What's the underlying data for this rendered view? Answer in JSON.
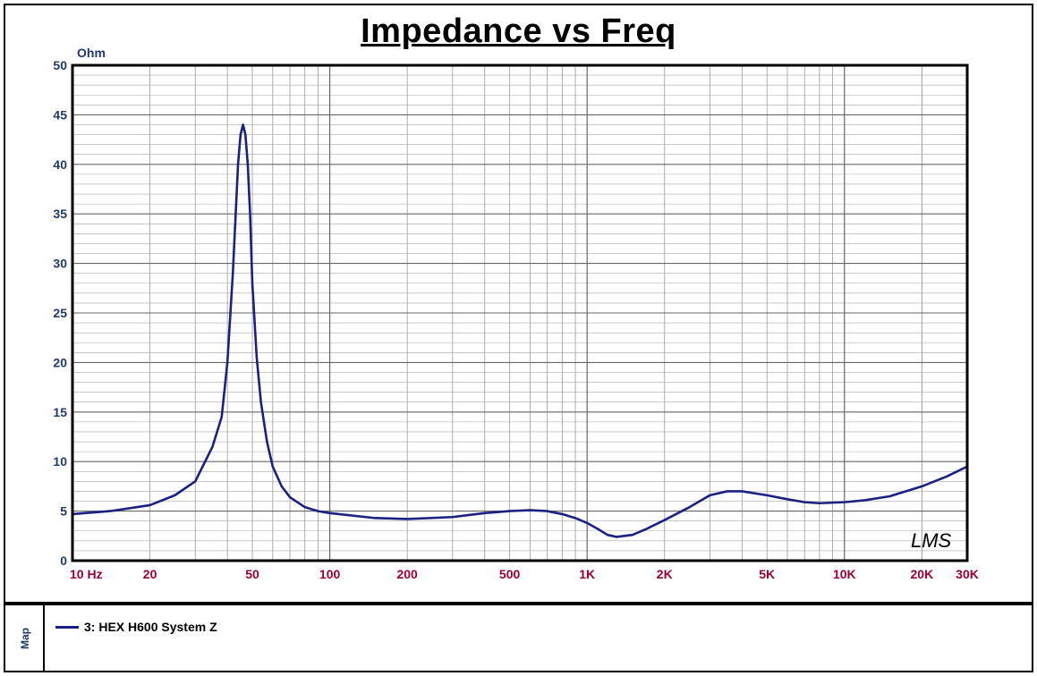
{
  "chart_data": {
    "type": "line",
    "title": "Impedance vs Freq",
    "ylabel": "Ohm",
    "xlabel": "",
    "x_scale": "log",
    "xlim": [
      10,
      30000
    ],
    "ylim": [
      0,
      50
    ],
    "y_ticks": [
      0,
      5,
      10,
      15,
      20,
      25,
      30,
      35,
      40,
      45,
      50
    ],
    "x_ticks": [
      {
        "value": 10,
        "label": "10 Hz"
      },
      {
        "value": 20,
        "label": "20"
      },
      {
        "value": 50,
        "label": "50"
      },
      {
        "value": 100,
        "label": "100"
      },
      {
        "value": 200,
        "label": "200"
      },
      {
        "value": 500,
        "label": "500"
      },
      {
        "value": 1000,
        "label": "1K"
      },
      {
        "value": 2000,
        "label": "2K"
      },
      {
        "value": 5000,
        "label": "5K"
      },
      {
        "value": 10000,
        "label": "10K"
      },
      {
        "value": 20000,
        "label": "20K"
      },
      {
        "value": 30000,
        "label": "30K"
      }
    ],
    "grid": true,
    "legend_position": "bottom",
    "series": [
      {
        "name": "3: HEX H600 System Z",
        "color": "#1a2180",
        "x": [
          10,
          14,
          20,
          25,
          30,
          35,
          38,
          40,
          42,
          44,
          45,
          46,
          47,
          48,
          49,
          50,
          52,
          54,
          57,
          60,
          65,
          70,
          80,
          90,
          100,
          150,
          200,
          300,
          400,
          500,
          600,
          700,
          800,
          900,
          1000,
          1100,
          1200,
          1300,
          1500,
          1700,
          2000,
          2500,
          3000,
          3500,
          4000,
          5000,
          6000,
          7000,
          8000,
          10000,
          12000,
          15000,
          20000,
          25000,
          30000
        ],
        "y": [
          4.7,
          5.0,
          5.6,
          6.6,
          8.0,
          11.5,
          14.5,
          20.0,
          29.0,
          40.0,
          43.0,
          44.0,
          43.0,
          40.0,
          35.0,
          28.0,
          20.5,
          16.0,
          12.0,
          9.5,
          7.5,
          6.4,
          5.4,
          5.0,
          4.8,
          4.3,
          4.2,
          4.4,
          4.8,
          5.0,
          5.1,
          5.0,
          4.7,
          4.3,
          3.8,
          3.2,
          2.6,
          2.4,
          2.6,
          3.2,
          4.1,
          5.4,
          6.6,
          7.0,
          7.0,
          6.6,
          6.2,
          5.9,
          5.8,
          5.9,
          6.1,
          6.5,
          7.5,
          8.5,
          9.5
        ]
      }
    ]
  },
  "legend": {
    "map_label": "Map",
    "item_label": "3: HEX H600 System Z"
  },
  "watermark": "LMS"
}
